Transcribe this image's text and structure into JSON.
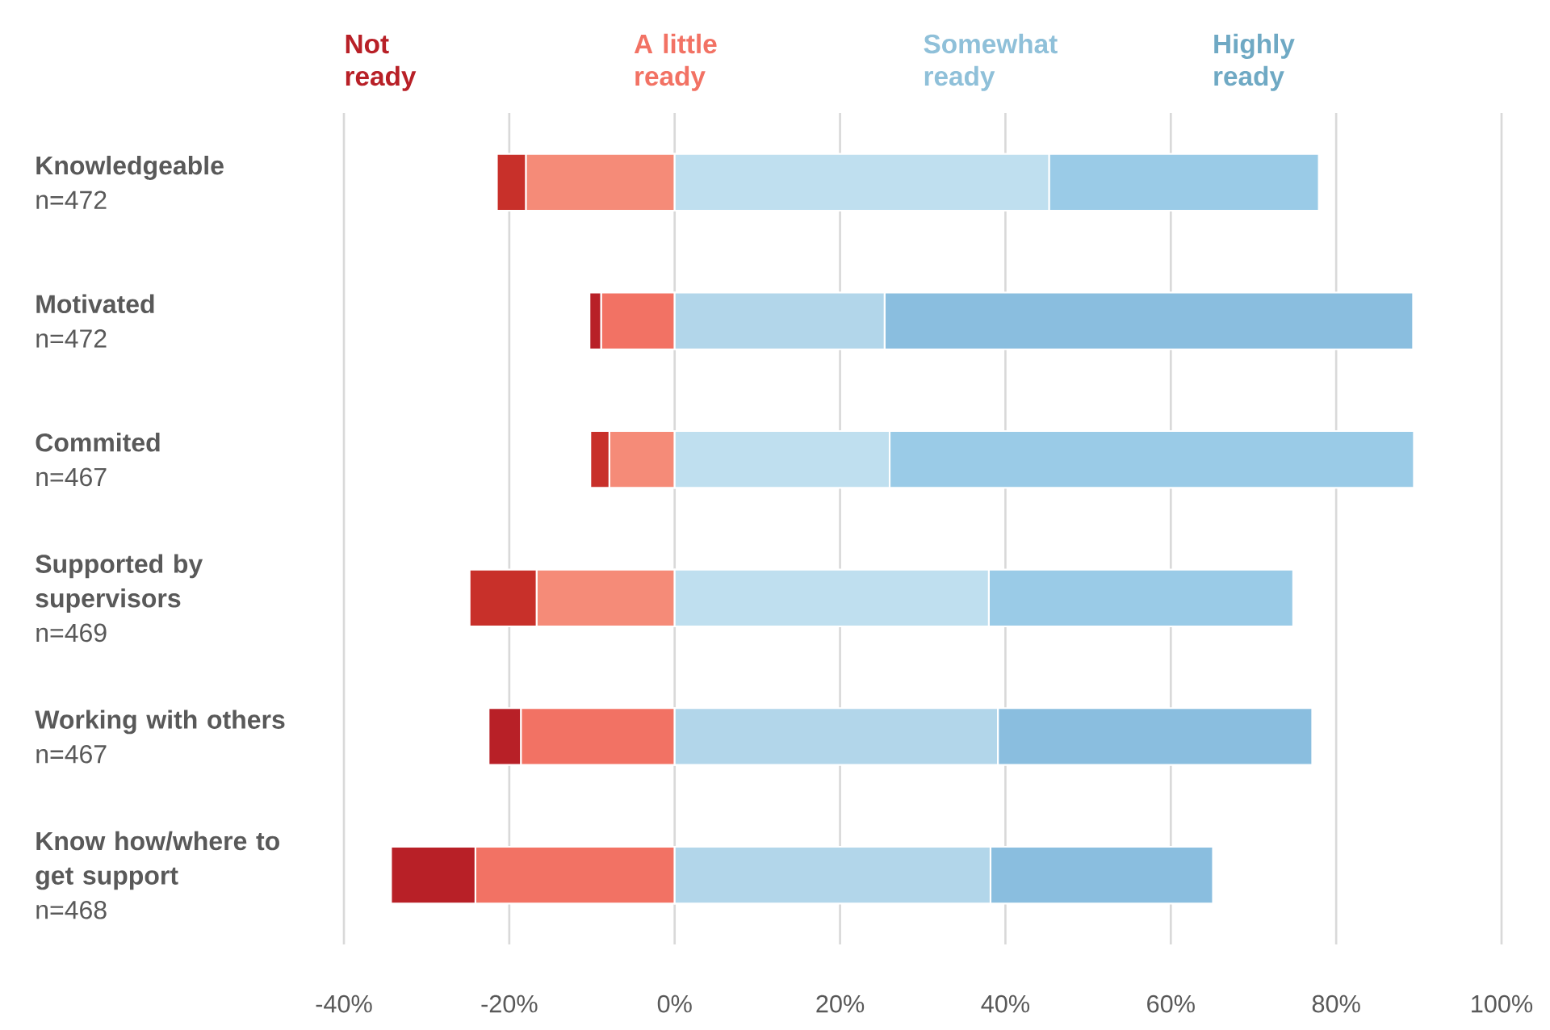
{
  "chart_data": {
    "type": "bar",
    "orientation": "horizontal",
    "stacked": true,
    "categories": [
      "Knowledgeable",
      "Motivated",
      "Commited",
      "Supported by supervisors",
      "Working with others",
      "Know how/where to get support"
    ],
    "series": [
      {
        "name": "A little ready",
        "color": "#f27264",
        "colors": [
          "#f58b78",
          "#f27264",
          "#f58b78",
          "#f58b78",
          "#f27264",
          "#f27264"
        ],
        "values": [
          -18.0,
          -8.9,
          -7.9,
          -16.7,
          -18.6,
          -24.1
        ]
      },
      {
        "name": "Not ready",
        "color": "#b82027",
        "colors": [
          "#c8302a",
          "#b82027",
          "#c8302a",
          "#c8302a",
          "#b82027",
          "#b82027"
        ],
        "values": [
          -3.5,
          -1.4,
          -2.3,
          -8.1,
          -3.9,
          -10.2
        ]
      },
      {
        "name": "Somewhat ready",
        "color": "#8fc0d9",
        "colors": [
          "#bfdfef",
          "#b2d6ea",
          "#bfdfef",
          "#bfdfef",
          "#b2d6ea",
          "#b2d6ea"
        ],
        "values": [
          45.3,
          25.4,
          26.0,
          38.0,
          39.1,
          38.2
        ]
      },
      {
        "name": "Highly ready",
        "color": "#6fa9c4",
        "colors": [
          "#9acbe7",
          "#8abedf",
          "#9acbe7",
          "#9acbe7",
          "#8abedf",
          "#8abedf"
        ],
        "values": [
          32.6,
          63.9,
          63.4,
          36.8,
          38.0,
          26.9
        ]
      }
    ],
    "annotations": [
      "n=472",
      "n=472",
      "n=467",
      "n=469",
      "n=467",
      "n=468"
    ],
    "xlim": [
      -40,
      100
    ],
    "xticks": [
      {
        "value": -40,
        "label": "-40%"
      },
      {
        "value": -20,
        "label": "-20%"
      },
      {
        "value": 0,
        "label": "0%"
      },
      {
        "value": 20,
        "label": "20%"
      },
      {
        "value": 40,
        "label": "40%"
      },
      {
        "value": 60,
        "label": "60%"
      },
      {
        "value": 80,
        "label": "80%"
      },
      {
        "value": 100,
        "label": "100%"
      }
    ],
    "grid": "x",
    "legend": "top"
  }
}
